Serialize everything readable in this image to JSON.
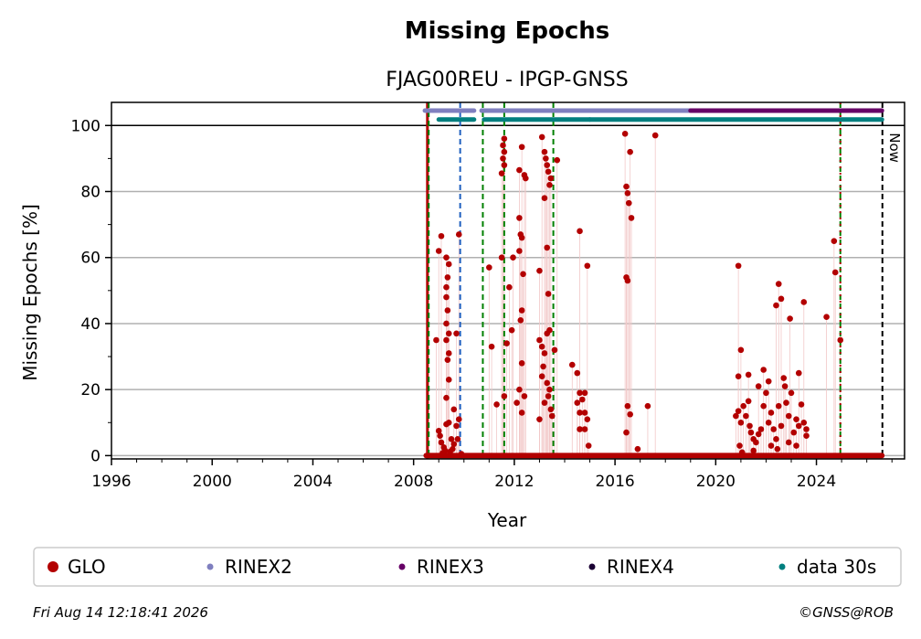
{
  "chart_data": {
    "type": "scatter",
    "title": "Missing Epochs",
    "subtitle": "FJAG00REU - IPGP-GNSS",
    "xlabel": "Year",
    "ylabel": "Missing Epochs [%]",
    "xlim": [
      1996,
      2027.5
    ],
    "ylim": [
      -1,
      107
    ],
    "x_ticks": [
      "1996",
      "2000",
      "2004",
      "2008",
      "2012",
      "2016",
      "2020",
      "2024"
    ],
    "y_ticks": [
      "0",
      "20",
      "40",
      "60",
      "80",
      "100"
    ],
    "grid": "horizontal",
    "now_label": "Now",
    "legend": [
      {
        "name": "GLO",
        "color": "#b30000"
      },
      {
        "name": "RINEX2",
        "color": "#7f7fbf"
      },
      {
        "name": "RINEX3",
        "color": "#660066"
      },
      {
        "name": "RINEX4",
        "color": "#1a0033"
      },
      {
        "name": "data 30s",
        "color": "#007f7f"
      }
    ],
    "availability_bars": [
      {
        "name": "RINEX2",
        "color": "#7f7fbf",
        "segments": [
          [
            2008.45,
            2010.4
          ],
          [
            2010.7,
            2019.0
          ]
        ]
      },
      {
        "name": "RINEX3",
        "color": "#660066",
        "segments": [
          [
            2019.0,
            2026.6
          ]
        ]
      },
      {
        "name": "data 30s",
        "color": "#007f7f",
        "segments": [
          [
            2009.0,
            2010.4
          ],
          [
            2010.8,
            2015.0
          ],
          [
            2015.0,
            2026.6
          ]
        ]
      }
    ],
    "event_lines": [
      {
        "year": 2008.55,
        "color": "#b30000",
        "style": "solid"
      },
      {
        "year": 2008.6,
        "color": "#008000",
        "style": "dashed"
      },
      {
        "year": 2009.85,
        "color": "#1f5fbf",
        "style": "dashed"
      },
      {
        "year": 2010.75,
        "color": "#008000",
        "style": "dashed"
      },
      {
        "year": 2011.6,
        "color": "#008000",
        "style": "dashed"
      },
      {
        "year": 2013.55,
        "color": "#008000",
        "style": "dashed"
      },
      {
        "year": 2024.95,
        "color": "#008000",
        "style": "dashed"
      },
      {
        "year": 2024.95,
        "color": "#b30000",
        "style": "dotted"
      },
      {
        "year": 2026.62,
        "color": "#000000",
        "style": "dashed"
      }
    ],
    "zero_line": {
      "from": 2008.5,
      "to": 2026.6
    },
    "series": [
      {
        "name": "GLO",
        "color": "#b30000",
        "points": [
          [
            2008.9,
            35
          ],
          [
            2009.0,
            62
          ],
          [
            2009.1,
            66.5
          ],
          [
            2009.3,
            60
          ],
          [
            2009.4,
            58
          ],
          [
            2009.35,
            54
          ],
          [
            2009.3,
            51
          ],
          [
            2009.3,
            48
          ],
          [
            2009.35,
            44
          ],
          [
            2009.3,
            40
          ],
          [
            2009.4,
            37
          ],
          [
            2009.3,
            35
          ],
          [
            2009.4,
            31
          ],
          [
            2009.35,
            29
          ],
          [
            2009.3,
            17.5
          ],
          [
            2009.4,
            23
          ],
          [
            2009.7,
            37
          ],
          [
            2009.8,
            67
          ],
          [
            2009.6,
            14
          ],
          [
            2009.0,
            7.5
          ],
          [
            2009.05,
            6
          ],
          [
            2009.1,
            4
          ],
          [
            2009.2,
            2.5
          ],
          [
            2009.25,
            1.5
          ],
          [
            2009.3,
            9.5
          ],
          [
            2009.4,
            10
          ],
          [
            2009.5,
            5
          ],
          [
            2009.6,
            3.5
          ],
          [
            2009.7,
            9
          ],
          [
            2009.8,
            11
          ],
          [
            2009.15,
            0.8
          ],
          [
            2009.45,
            1.2
          ],
          [
            2009.55,
            2
          ],
          [
            2009.75,
            5
          ],
          [
            2009.9,
            0.5
          ],
          [
            2011.0,
            57
          ],
          [
            2011.1,
            33
          ],
          [
            2011.3,
            15.5
          ],
          [
            2011.5,
            60
          ],
          [
            2011.6,
            96
          ],
          [
            2011.55,
            94
          ],
          [
            2011.6,
            92
          ],
          [
            2011.55,
            90
          ],
          [
            2011.6,
            88
          ],
          [
            2011.5,
            85.5
          ],
          [
            2011.6,
            18
          ],
          [
            2011.7,
            34
          ],
          [
            2011.8,
            51
          ],
          [
            2011.9,
            38
          ],
          [
            2011.95,
            60
          ],
          [
            2012.2,
            86.5
          ],
          [
            2012.3,
            93.5
          ],
          [
            2012.4,
            85
          ],
          [
            2012.45,
            84
          ],
          [
            2012.2,
            72
          ],
          [
            2012.25,
            67
          ],
          [
            2012.3,
            66
          ],
          [
            2012.2,
            62
          ],
          [
            2012.35,
            55
          ],
          [
            2012.3,
            44
          ],
          [
            2012.25,
            41
          ],
          [
            2012.3,
            28
          ],
          [
            2012.2,
            20
          ],
          [
            2012.1,
            16
          ],
          [
            2012.4,
            18
          ],
          [
            2012.3,
            13
          ],
          [
            2013.0,
            56
          ],
          [
            2013.1,
            96.5
          ],
          [
            2013.2,
            92
          ],
          [
            2013.25,
            90
          ],
          [
            2013.3,
            88
          ],
          [
            2013.35,
            86
          ],
          [
            2013.4,
            82
          ],
          [
            2013.45,
            84
          ],
          [
            2013.7,
            89.5
          ],
          [
            2013.2,
            78
          ],
          [
            2013.3,
            63
          ],
          [
            2013.35,
            49
          ],
          [
            2013.4,
            38
          ],
          [
            2013.3,
            37
          ],
          [
            2013.1,
            33
          ],
          [
            2013.2,
            31
          ],
          [
            2013.0,
            35
          ],
          [
            2013.15,
            27
          ],
          [
            2013.3,
            22
          ],
          [
            2013.4,
            20
          ],
          [
            2013.35,
            18
          ],
          [
            2013.2,
            16
          ],
          [
            2013.45,
            14
          ],
          [
            2013.5,
            12
          ],
          [
            2013.6,
            32
          ],
          [
            2013.0,
            11
          ],
          [
            2013.1,
            24
          ],
          [
            2014.3,
            27.5
          ],
          [
            2014.6,
            68
          ],
          [
            2014.9,
            57.5
          ],
          [
            2014.5,
            25
          ],
          [
            2014.6,
            19
          ],
          [
            2014.7,
            17
          ],
          [
            2014.8,
            19
          ],
          [
            2014.6,
            13
          ],
          [
            2014.8,
            13
          ],
          [
            2014.9,
            11
          ],
          [
            2014.6,
            8
          ],
          [
            2014.8,
            8
          ],
          [
            2014.95,
            3
          ],
          [
            2014.5,
            16
          ],
          [
            2016.4,
            97.5
          ],
          [
            2016.45,
            81.5
          ],
          [
            2016.5,
            79.5
          ],
          [
            2016.55,
            76.5
          ],
          [
            2016.6,
            92
          ],
          [
            2016.65,
            72
          ],
          [
            2016.45,
            54
          ],
          [
            2016.5,
            53
          ],
          [
            2016.5,
            15
          ],
          [
            2016.45,
            7
          ],
          [
            2016.6,
            12.5
          ],
          [
            2016.9,
            2
          ],
          [
            2017.3,
            15
          ],
          [
            2017.6,
            97
          ],
          [
            2020.9,
            57.5
          ],
          [
            2021.0,
            32
          ],
          [
            2020.9,
            24
          ],
          [
            2021.3,
            24.5
          ],
          [
            2021.7,
            21
          ],
          [
            2021.9,
            26
          ],
          [
            2022.1,
            22.5
          ],
          [
            2022.4,
            45.5
          ],
          [
            2022.5,
            52
          ],
          [
            2022.6,
            47.5
          ],
          [
            2022.95,
            41.5
          ],
          [
            2023.3,
            25
          ],
          [
            2023.5,
            46.5
          ],
          [
            2024.4,
            42
          ],
          [
            2024.7,
            65
          ],
          [
            2024.75,
            55.5
          ],
          [
            2024.95,
            35
          ],
          [
            2020.8,
            12
          ],
          [
            2020.9,
            13.5
          ],
          [
            2021.0,
            10
          ],
          [
            2021.1,
            15
          ],
          [
            2021.2,
            12
          ],
          [
            2021.3,
            16.5
          ],
          [
            2021.35,
            9
          ],
          [
            2021.4,
            7
          ],
          [
            2021.5,
            5
          ],
          [
            2021.6,
            4
          ],
          [
            2021.7,
            6.5
          ],
          [
            2021.8,
            8
          ],
          [
            2021.9,
            15
          ],
          [
            2022.0,
            19
          ],
          [
            2022.1,
            10
          ],
          [
            2022.2,
            13
          ],
          [
            2022.3,
            8
          ],
          [
            2022.4,
            5
          ],
          [
            2022.5,
            15
          ],
          [
            2022.6,
            9
          ],
          [
            2022.7,
            23.5
          ],
          [
            2022.75,
            21
          ],
          [
            2022.8,
            16
          ],
          [
            2022.9,
            12
          ],
          [
            2023.0,
            19
          ],
          [
            2023.1,
            7
          ],
          [
            2023.2,
            11
          ],
          [
            2023.3,
            9
          ],
          [
            2023.4,
            15.5
          ],
          [
            2023.5,
            10
          ],
          [
            2023.6,
            6
          ],
          [
            2022.2,
            3
          ],
          [
            2022.45,
            2
          ],
          [
            2022.9,
            4
          ],
          [
            2023.2,
            3
          ],
          [
            2021.5,
            1.5
          ],
          [
            2020.95,
            3
          ],
          [
            2021.05,
            1
          ],
          [
            2023.6,
            8
          ]
        ],
        "zero_points": "dense markers at 0 from 2008.5 to 2026.6"
      }
    ]
  },
  "footer": {
    "timestamp": "Fri Aug 14 12:18:41 2026",
    "copyright": "©GNSS@ROB"
  }
}
